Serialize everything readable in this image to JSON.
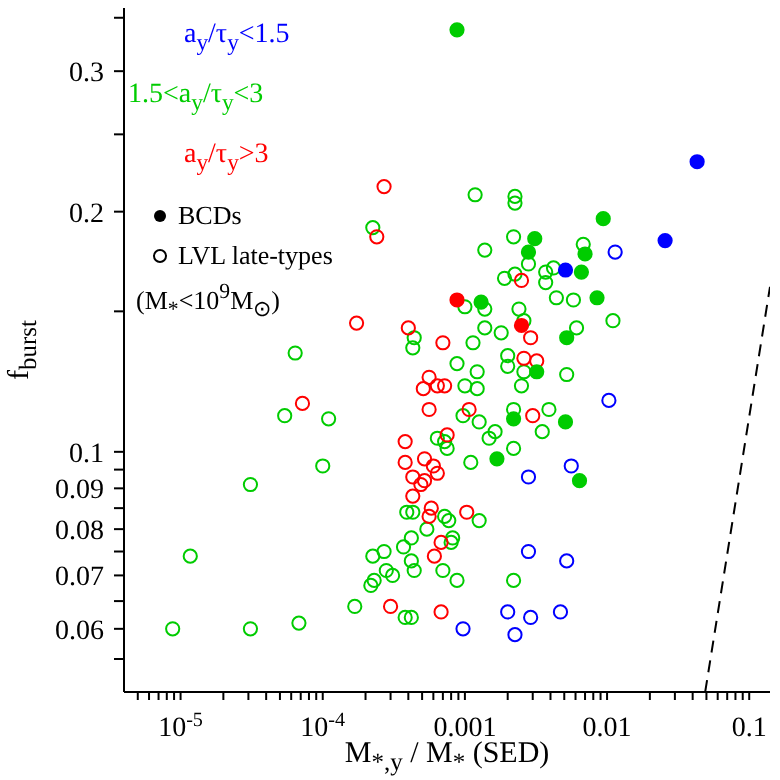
{
  "chart_data": {
    "type": "scatter",
    "xlabel": "M$_{*,y}$ / M$_{*}$ (SED)",
    "ylabel": "f$_{burst}$",
    "log": "xy",
    "legend": "top left",
    "xlim": [
      4e-06,
      0.14
    ],
    "ylim": [
      0.05,
      0.36
    ],
    "xticks": [
      {
        "value": 5e-06,
        "label": null
      },
      {
        "value": 6e-06,
        "label": null
      },
      {
        "value": 7e-06,
        "label": null
      },
      {
        "value": 8e-06,
        "label": null
      },
      {
        "value": 9e-06,
        "label": null
      },
      {
        "value": 1e-05,
        "label": "10$^{-5}$"
      },
      {
        "value": 2e-05,
        "label": null
      },
      {
        "value": 3e-05,
        "label": null
      },
      {
        "value": 4e-05,
        "label": null
      },
      {
        "value": 5e-05,
        "label": null
      },
      {
        "value": 6e-05,
        "label": null
      },
      {
        "value": 7e-05,
        "label": null
      },
      {
        "value": 8e-05,
        "label": null
      },
      {
        "value": 9e-05,
        "label": null
      },
      {
        "value": 0.0001,
        "label": "10$^{-4}$"
      },
      {
        "value": 0.0002,
        "label": null
      },
      {
        "value": 0.0003,
        "label": null
      },
      {
        "value": 0.0004,
        "label": null
      },
      {
        "value": 0.0005,
        "label": null
      },
      {
        "value": 0.0006,
        "label": null
      },
      {
        "value": 0.0007,
        "label": null
      },
      {
        "value": 0.0008,
        "label": null
      },
      {
        "value": 0.0009,
        "label": null
      },
      0.001,
      {
        "value": 0.002,
        "label": null
      },
      {
        "value": 0.003,
        "label": null
      },
      {
        "value": 0.004,
        "label": null
      },
      {
        "value": 0.005,
        "label": null
      },
      {
        "value": 0.006,
        "label": null
      },
      {
        "value": 0.007,
        "label": null
      },
      {
        "value": 0.008,
        "label": null
      },
      {
        "value": 0.009,
        "label": null
      },
      0.01,
      {
        "value": 0.02,
        "label": null
      },
      {
        "value": 0.03,
        "label": null
      },
      {
        "value": 0.04,
        "label": null
      },
      {
        "value": 0.05,
        "label": null
      },
      {
        "value": 0.06,
        "label": null
      },
      {
        "value": 0.07,
        "label": null
      },
      {
        "value": 0.08,
        "label": null
      },
      {
        "value": 0.09,
        "label": null
      },
      0.1
    ],
    "yticks": [
      {
        "value": 0.055,
        "label": null
      },
      0.06,
      {
        "value": 0.065,
        "label": null
      },
      0.07,
      {
        "value": 0.075,
        "label": null
      },
      0.08,
      {
        "value": 0.085,
        "label": null
      },
      0.09,
      {
        "value": 0.095,
        "label": null
      },
      0.1,
      {
        "value": 0.15,
        "label": null
      },
      0.2,
      {
        "value": 0.25,
        "label": null
      },
      0.3,
      {
        "value": 0.35,
        "label": null
      }
    ],
    "series": [
      {
        "name": "a$_{y}$/τ$_{y}$<1.5",
        "color": "#0000ff",
        "marker": "circle_open",
        "x": [
          0.0114,
          0.0103,
          0.0056,
          0.0028,
          0.0028,
          0.0052,
          0.002,
          0.0029,
          0.0047,
          0.00097,
          0.00225
        ],
        "values": [
          0.178,
          0.116,
          0.096,
          0.093,
          0.075,
          0.073,
          0.063,
          0.062,
          0.063,
          0.06,
          0.059
        ]
      },
      {
        "name": "1.5<a$_{y}$/τ$_{y}$<3",
        "color": "#00cc00",
        "marker": "circle_open",
        "x": [
          0.000225,
          6.4e-05,
          0.00118,
          0.00225,
          0.00225,
          0.0022,
          0.0068,
          0.00138,
          0.0028,
          0.0037,
          0.0042,
          0.0019,
          0.00225,
          0.0037,
          0.0044,
          0.0058,
          0.001,
          0.00138,
          0.0024,
          0.011,
          0.0061,
          0.00138,
          0.0018,
          0.0026,
          0.00044,
          0.00043,
          0.00114,
          0.002,
          0.002,
          0.00088,
          0.00122,
          0.0026,
          0.0052,
          0.001,
          0.00122,
          0.0025,
          0.00097,
          0.00126,
          0.0022,
          0.0039,
          0.0035,
          0.00148,
          0.00163,
          0.00064,
          0.00072,
          0.00075,
          0.0022,
          0.0011,
          0.00039,
          0.00043,
          0.00072,
          0.00077,
          0.00126,
          0.00054,
          0.00042,
          0.00082,
          0.0008,
          0.00027,
          0.000225,
          0.00037,
          0.00042,
          0.00044,
          0.00028,
          0.00031,
          0.00023,
          0.000218,
          0.0007,
          0.00088,
          0.0022,
          0.00038,
          0.00042,
          5.4e-05,
          0.00011,
          0.0001,
          3.1e-05,
          1.17e-05,
          0.000168,
          8.8e-06,
          3.1e-05,
          6.8e-05
        ],
        "values": [
          0.191,
          0.133,
          0.21,
          0.209,
          0.205,
          0.186,
          0.182,
          0.179,
          0.172,
          0.168,
          0.17,
          0.165,
          0.167,
          0.163,
          0.156,
          0.155,
          0.152,
          0.151,
          0.151,
          0.146,
          0.143,
          0.143,
          0.141,
          0.146,
          0.139,
          0.135,
          0.137,
          0.132,
          0.128,
          0.129,
          0.126,
          0.126,
          0.125,
          0.121,
          0.12,
          0.121,
          0.111,
          0.109,
          0.113,
          0.113,
          0.106,
          0.104,
          0.106,
          0.104,
          0.103,
          0.101,
          0.101,
          0.097,
          0.084,
          0.084,
          0.083,
          0.082,
          0.082,
          0.08,
          0.078,
          0.078,
          0.077,
          0.075,
          0.074,
          0.076,
          0.073,
          0.071,
          0.071,
          0.07,
          0.069,
          0.068,
          0.071,
          0.069,
          0.069,
          0.062,
          0.062,
          0.111,
          0.11,
          0.096,
          0.091,
          0.074,
          0.064,
          0.06,
          0.06,
          0.061
        ]
      },
      {
        "name": "a$_{y}$/τ$_{y}$>3",
        "color": "#ff0000",
        "marker": "circle_open",
        "x": [
          0.00027,
          0.00024,
          0.000173,
          0.0025,
          0.0004,
          0.0007,
          0.0029,
          0.0026,
          0.0032,
          0.00056,
          0.00051,
          0.00064,
          0.00072,
          0.00056,
          0.00107,
          0.003,
          0.00038,
          0.00075,
          0.00038,
          0.00052,
          0.0006,
          0.00064,
          0.00043,
          0.00052,
          0.00049,
          0.00043,
          0.00058,
          0.00056,
          0.00103,
          0.00068,
          0.00061,
          0.0003,
          0.00068,
          7.2e-05
        ],
        "values": [
          0.215,
          0.186,
          0.145,
          0.164,
          0.143,
          0.137,
          0.139,
          0.131,
          0.13,
          0.124,
          0.12,
          0.121,
          0.121,
          0.113,
          0.113,
          0.111,
          0.103,
          0.105,
          0.097,
          0.098,
          0.096,
          0.094,
          0.093,
          0.092,
          0.091,
          0.088,
          0.085,
          0.083,
          0.084,
          0.077,
          0.074,
          0.064,
          0.063,
          0.115
        ]
      },
      {
        "color": "#0000ff",
        "marker": "circle",
        "x": [
          0.043,
          0.0256,
          0.0051
        ],
        "values": [
          0.231,
          0.184,
          0.169
        ]
      },
      {
        "color": "#00cc00",
        "marker": "circle",
        "x": [
          0.00088,
          0.0094,
          0.0031,
          0.0028,
          0.007,
          0.0066,
          0.0085,
          0.0013,
          0.0052,
          0.0032,
          0.0022,
          0.0051,
          0.00168,
          0.0064
        ],
        "values": [
          0.338,
          0.196,
          0.185,
          0.178,
          0.177,
          0.168,
          0.156,
          0.154,
          0.139,
          0.126,
          0.11,
          0.109,
          0.098,
          0.092
        ]
      },
      {
        "color": "#ff0000",
        "marker": "circle",
        "x": [
          0.00088,
          0.0025
        ],
        "values": [
          0.155,
          0.144
        ]
      },
      {
        "type": "line",
        "color": "#000000",
        "marker": "none",
        "line_style": "dashed",
        "x": [
          0.049,
          0.14
        ],
        "values": [
          0.05,
          0.161
        ]
      }
    ],
    "annotations": [
      "BCDs",
      "LVL late-types",
      "(M$_{*}$<10$^{9}$M$_{⊙}$)"
    ]
  }
}
